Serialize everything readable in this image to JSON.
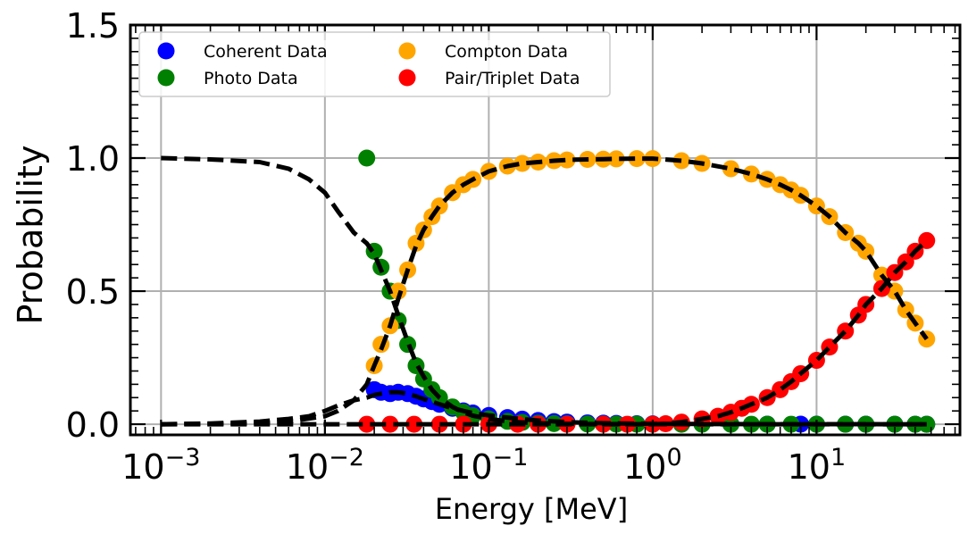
{
  "chart_data": {
    "type": "scatter",
    "xscale": "log",
    "xlim": [
      0.00065,
      75
    ],
    "ylim": [
      -0.04,
      1.5
    ],
    "xlabel": "Energy [MeV]",
    "ylabel": "Probability",
    "grid": true,
    "legend_position": "top-left",
    "x_ticks": [
      {
        "value": 0.001,
        "base": "10",
        "exp": "−3"
      },
      {
        "value": 0.01,
        "base": "10",
        "exp": "−2"
      },
      {
        "value": 0.1,
        "base": "10",
        "exp": "−1"
      },
      {
        "value": 1,
        "base": "10",
        "exp": "0"
      },
      {
        "value": 10,
        "base": "10",
        "exp": "1"
      }
    ],
    "y_ticks": [
      {
        "value": 0.0,
        "label": "0.0"
      },
      {
        "value": 0.5,
        "label": "0.5"
      },
      {
        "value": 1.0,
        "label": "1.0"
      },
      {
        "value": 1.5,
        "label": "1.5"
      }
    ],
    "series": [
      {
        "name": "Coherent Data",
        "color": "#0000ff",
        "x": [
          0.02,
          0.022,
          0.025,
          0.028,
          0.032,
          0.036,
          0.04,
          0.045,
          0.05,
          0.06,
          0.07,
          0.08,
          0.1,
          0.13,
          0.16,
          0.2,
          0.25,
          0.3,
          0.4,
          0.5,
          0.6,
          0.8,
          1.0,
          1.5,
          2,
          3,
          5,
          8,
          10,
          15,
          20,
          30,
          40,
          47
        ],
        "y": [
          0.13,
          0.12,
          0.115,
          0.12,
          0.115,
          0.105,
          0.095,
          0.085,
          0.075,
          0.06,
          0.05,
          0.042,
          0.033,
          0.025,
          0.019,
          0.014,
          0.01,
          0.008,
          0.005,
          0.004,
          0.003,
          0.002,
          0.0015,
          0.001,
          0.0008,
          0.0005,
          0.0003,
          0.0002,
          0.0001,
          0.0001,
          0.0001,
          0.0,
          0.0,
          0.0
        ]
      },
      {
        "name": "Photo Data",
        "color": "#008000",
        "x": [
          0.018,
          0.02,
          0.022,
          0.025,
          0.028,
          0.032,
          0.036,
          0.04,
          0.045,
          0.05,
          0.06,
          0.07,
          0.08,
          0.1,
          0.13,
          0.16,
          0.2,
          0.25,
          0.3,
          0.4,
          0.5,
          0.6,
          0.8,
          1.0,
          1.5,
          2,
          3,
          4,
          5,
          7,
          10,
          15,
          20,
          30,
          40,
          47
        ],
        "y": [
          1.0,
          0.65,
          0.59,
          0.5,
          0.39,
          0.3,
          0.22,
          0.17,
          0.13,
          0.1,
          0.065,
          0.045,
          0.032,
          0.02,
          0.011,
          0.007,
          0.004,
          0.0025,
          0.0015,
          0.0008,
          0.0005,
          0.0003,
          0.0002,
          0.0001,
          0.0,
          0.0,
          0.0,
          0.0,
          0.0,
          0.0,
          0.0,
          0.0,
          0.0,
          0.0,
          0.0,
          0.0
        ]
      },
      {
        "name": "Compton Data",
        "color": "#ffa500",
        "x": [
          0.02,
          0.022,
          0.025,
          0.028,
          0.032,
          0.036,
          0.04,
          0.045,
          0.05,
          0.06,
          0.07,
          0.08,
          0.1,
          0.13,
          0.16,
          0.2,
          0.25,
          0.3,
          0.4,
          0.5,
          0.6,
          0.8,
          1.0,
          1.5,
          2,
          3,
          4,
          5,
          6,
          7,
          8,
          10,
          12,
          15,
          18,
          20,
          25,
          30,
          35,
          40,
          47
        ],
        "y": [
          0.22,
          0.3,
          0.37,
          0.5,
          0.58,
          0.68,
          0.73,
          0.78,
          0.82,
          0.87,
          0.9,
          0.92,
          0.95,
          0.97,
          0.98,
          0.985,
          0.99,
          0.993,
          0.995,
          0.996,
          0.997,
          0.998,
          0.998,
          0.99,
          0.98,
          0.96,
          0.94,
          0.92,
          0.9,
          0.88,
          0.86,
          0.82,
          0.78,
          0.72,
          0.68,
          0.65,
          0.56,
          0.5,
          0.43,
          0.38,
          0.32
        ]
      },
      {
        "name": "Pair/Triplet Data",
        "color": "#ff0000",
        "x": [
          0.018,
          0.025,
          0.035,
          0.05,
          0.07,
          0.1,
          0.15,
          0.2,
          0.3,
          0.5,
          0.7,
          1.0,
          1.2,
          1.5,
          2.0,
          2.5,
          3.0,
          3.5,
          4,
          5,
          6,
          7,
          8,
          10,
          12,
          15,
          18,
          20,
          25,
          30,
          35,
          40,
          47
        ],
        "y": [
          0.0,
          0.0,
          0.0,
          0.0,
          0.0,
          0.0,
          0.0,
          0.0,
          0.0,
          0.0,
          0.0,
          0.0,
          0.002,
          0.008,
          0.02,
          0.03,
          0.045,
          0.06,
          0.075,
          0.1,
          0.13,
          0.16,
          0.19,
          0.24,
          0.29,
          0.35,
          0.41,
          0.45,
          0.51,
          0.57,
          0.61,
          0.65,
          0.69
        ]
      }
    ],
    "fit_curves": {
      "color": "#000000",
      "style": "dashed",
      "lines": [
        {
          "x": [
            0.001,
            0.002,
            0.004,
            0.006,
            0.008,
            0.01,
            0.012,
            0.015,
            0.018,
            0.02,
            0.022,
            0.025,
            0.028,
            0.032,
            0.036,
            0.04,
            0.045,
            0.05,
            0.06,
            0.07,
            0.08,
            0.1,
            0.13,
            0.16,
            0.2,
            0.3,
            0.5,
            1.0,
            2.0,
            5.0,
            10.0,
            47.0
          ],
          "y": [
            1.0,
            0.995,
            0.985,
            0.96,
            0.92,
            0.87,
            0.8,
            0.72,
            0.68,
            0.64,
            0.58,
            0.5,
            0.41,
            0.31,
            0.23,
            0.18,
            0.13,
            0.1,
            0.065,
            0.045,
            0.032,
            0.02,
            0.011,
            0.007,
            0.004,
            0.0015,
            0.0005,
            0.0001,
            0.0,
            0.0,
            0.0,
            0.0
          ]
        },
        {
          "x": [
            0.001,
            0.002,
            0.004,
            0.006,
            0.008,
            0.01,
            0.012,
            0.015,
            0.018,
            0.02,
            0.022,
            0.025,
            0.028,
            0.032,
            0.036,
            0.04,
            0.045,
            0.05,
            0.06,
            0.07,
            0.08,
            0.1,
            0.13,
            0.16,
            0.2,
            0.3,
            0.5,
            1.0,
            2.0,
            5.0,
            10.0,
            47.0
          ],
          "y": [
            0.0,
            0.003,
            0.01,
            0.02,
            0.03,
            0.05,
            0.07,
            0.09,
            0.1,
            0.11,
            0.115,
            0.12,
            0.12,
            0.115,
            0.105,
            0.095,
            0.085,
            0.075,
            0.06,
            0.05,
            0.042,
            0.033,
            0.025,
            0.019,
            0.014,
            0.008,
            0.004,
            0.0015,
            0.0008,
            0.0003,
            0.0001,
            0.0
          ]
        },
        {
          "x": [
            0.001,
            0.003,
            0.006,
            0.01,
            0.012,
            0.015,
            0.018,
            0.02,
            0.022,
            0.025,
            0.028,
            0.032,
            0.036,
            0.04,
            0.045,
            0.05,
            0.06,
            0.07,
            0.08,
            0.1,
            0.13,
            0.16,
            0.2,
            0.25,
            0.3,
            0.4,
            0.5,
            0.8,
            1.0,
            1.5,
            2,
            3,
            4,
            5,
            6,
            7,
            8,
            10,
            12,
            15,
            18,
            20,
            25,
            30,
            35,
            40,
            47
          ],
          "y": [
            0.0,
            0.002,
            0.01,
            0.03,
            0.05,
            0.09,
            0.15,
            0.22,
            0.28,
            0.37,
            0.47,
            0.58,
            0.67,
            0.73,
            0.78,
            0.82,
            0.87,
            0.9,
            0.92,
            0.95,
            0.97,
            0.98,
            0.985,
            0.99,
            0.993,
            0.995,
            0.996,
            0.998,
            0.998,
            0.99,
            0.98,
            0.96,
            0.94,
            0.92,
            0.9,
            0.88,
            0.86,
            0.82,
            0.78,
            0.72,
            0.68,
            0.65,
            0.56,
            0.5,
            0.43,
            0.38,
            0.32
          ]
        },
        {
          "x": [
            0.001,
            0.1,
            1.0,
            1.2,
            1.5,
            2.0,
            2.5,
            3.0,
            3.5,
            4,
            5,
            6,
            7,
            8,
            10,
            12,
            15,
            18,
            20,
            25,
            30,
            35,
            40,
            47
          ],
          "y": [
            0.0,
            0.0,
            0.0,
            0.002,
            0.008,
            0.02,
            0.03,
            0.045,
            0.06,
            0.075,
            0.1,
            0.13,
            0.16,
            0.19,
            0.24,
            0.29,
            0.35,
            0.41,
            0.45,
            0.51,
            0.57,
            0.61,
            0.65,
            0.69
          ]
        }
      ]
    }
  }
}
